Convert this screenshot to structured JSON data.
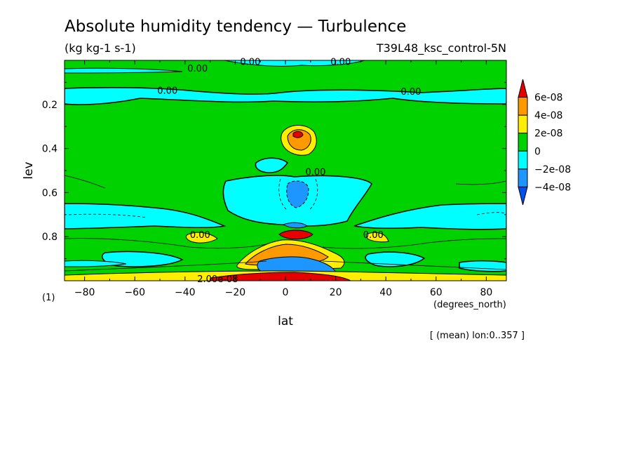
{
  "chart_data": {
    "type": "heatmap",
    "title": "Absolute humidity tendency — Turbulence",
    "units": "(kg kg-1 s-1)",
    "experiment": "T39L48_ksc_control-5N",
    "xlabel": "lat",
    "x_units": "(degrees_north)",
    "ylabel": "lev",
    "y_units": "(1)",
    "note": "[ (mean) lon:0..357 ]",
    "xlim": [
      -88,
      88
    ],
    "ylim": [
      1.0,
      0.0
    ],
    "x_ticks": [
      -80,
      -60,
      -40,
      -20,
      0,
      20,
      40,
      60,
      80
    ],
    "x_tick_labels": [
      "−80",
      "−60",
      "−40",
      "−20",
      "0",
      "20",
      "40",
      "60",
      "80"
    ],
    "y_ticks": [
      0.2,
      0.4,
      0.6,
      0.8
    ],
    "y_tick_labels": [
      "0.2",
      "0.4",
      "0.6",
      "0.8"
    ],
    "colorbar": {
      "labels": [
        "6e-08",
        "4e-08",
        "2e-08",
        "0",
        "−2e-08",
        "−4e-08"
      ],
      "colors": [
        "#e60000",
        "#ff9900",
        "#ffee00",
        "#00d200",
        "#00ffff",
        "#1e96ff",
        "#0050f0"
      ]
    },
    "contour_labels": [
      {
        "text": "0.00",
        "lat": -35,
        "lev": 0.035
      },
      {
        "text": "0.00",
        "lat": -14,
        "lev": 0.005
      },
      {
        "text": "0.00",
        "lat": 22,
        "lev": 0.005
      },
      {
        "text": "0.00",
        "lat": -47,
        "lev": 0.135
      },
      {
        "text": "0.00",
        "lat": 50,
        "lev": 0.14
      },
      {
        "text": "0.00",
        "lat": 12,
        "lev": 0.505
      },
      {
        "text": "0.00",
        "lat": -34,
        "lev": 0.79
      },
      {
        "text": "0.00",
        "lat": 35,
        "lev": 0.79
      },
      {
        "text": "2.00e-08",
        "lat": -27,
        "lev": 0.99
      }
    ]
  }
}
